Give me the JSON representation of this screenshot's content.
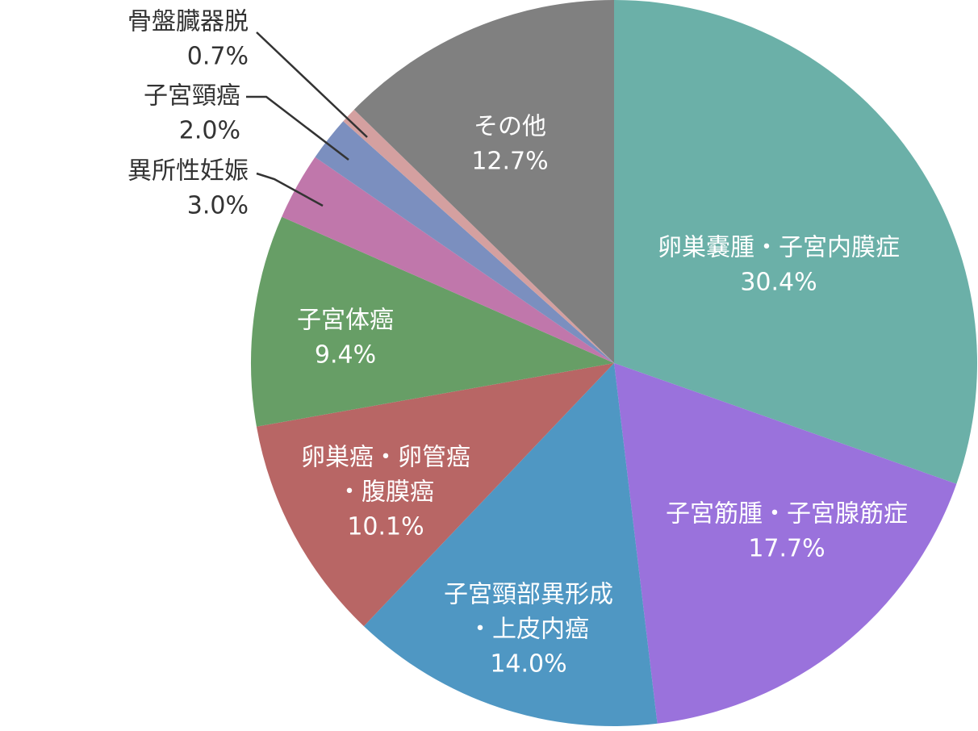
{
  "chart_data": {
    "type": "pie",
    "categories": [
      [
        "卵巣嚢腫・子宮内膜症"
      ],
      [
        "子宮筋腫・子宮腺筋症"
      ],
      [
        "子宮頸部異形成",
        "・上皮内癌"
      ],
      [
        "卵巣癌・卵管癌",
        "・腹膜癌"
      ],
      [
        "子宮体癌"
      ],
      [
        "異所性妊娠"
      ],
      [
        "子宮頸癌"
      ],
      [
        "骨盤臓器脱"
      ],
      [
        "その他"
      ]
    ],
    "values": [
      30.4,
      17.7,
      14.0,
      10.1,
      9.4,
      3.0,
      2.0,
      0.7,
      12.7
    ],
    "value_labels": [
      "30.4%",
      "17.7%",
      "14.0%",
      "10.1%",
      "9.4%",
      "3.0%",
      "2.0%",
      "0.7%",
      "12.7%"
    ],
    "colors": [
      "#6bb0a8",
      "#9a72dc",
      "#4f97c3",
      "#b86665",
      "#679e66",
      "#c077ab",
      "#7b8fbf",
      "#d4a0a0",
      "#808080"
    ]
  }
}
